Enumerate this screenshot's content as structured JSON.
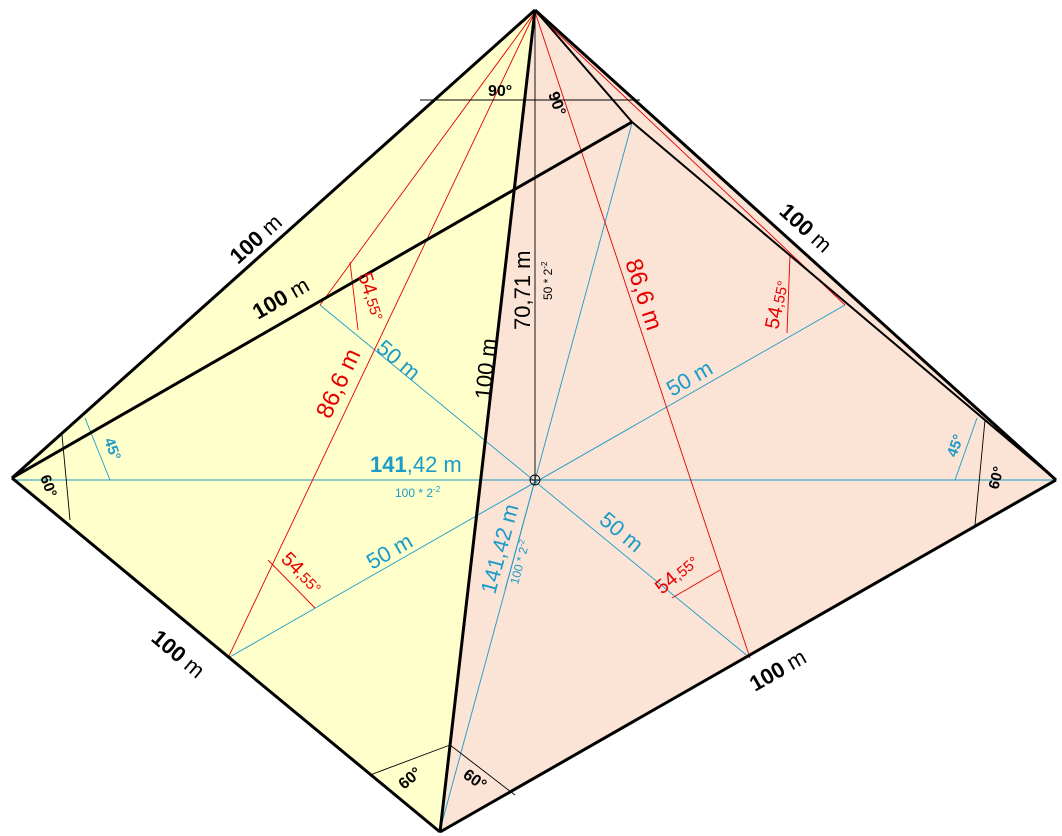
{
  "colors": {
    "left_face": "#ffffcc",
    "right_face": "#fbe3d5",
    "edge": "#000000",
    "red": "#e60000",
    "blue": "#1a9bc8"
  },
  "labels": {
    "edge_top_left": {
      "num": "100",
      "unit": " m"
    },
    "edge_inner": {
      "num": "100",
      "unit": " m"
    },
    "edge_top_right": {
      "num": "100",
      "unit": " m"
    },
    "edge_bottom_left": {
      "num": "100",
      "unit": " m"
    },
    "edge_bottom_right": {
      "num": "100",
      "unit": " m"
    },
    "edge_front": {
      "num": "100",
      "unit": " m"
    },
    "height": {
      "num": "70",
      "rest": ",71  m"
    },
    "height_formula": {
      "base": "50 * 2",
      "exp": "-2"
    },
    "apothem_left": {
      "num": "86",
      "rest": ",6 m"
    },
    "apothem_right": {
      "num": "86",
      "rest": ",6 m"
    },
    "angle_slope_left_top": {
      "num": "54",
      "rest": ",55°"
    },
    "angle_slope_right_top": {
      "num": "54",
      "rest": ",55°"
    },
    "angle_slope_left_bottom": {
      "num": "54",
      "rest": ",55°"
    },
    "angle_slope_right_bottom": {
      "num": "54",
      "rest": ",55°"
    },
    "half_base_upper_left": "50 m",
    "half_base_upper_right": "50 m",
    "half_base_lower_left": "50 m",
    "half_base_lower_right": "50 m",
    "diagonal_horizontal": {
      "num": "141",
      "rest": ",42 m"
    },
    "diagonal_horizontal_formula": {
      "base": "100 * 2",
      "exp": "-2"
    },
    "diagonal_slanted": {
      "num": "141",
      "rest": ",42 m"
    },
    "diagonal_slanted_formula": {
      "base": "100 * 2",
      "exp": "-2"
    },
    "angle_apex_left": "90°",
    "angle_apex_right": "90°",
    "angle_left_60": "60°",
    "angle_left_45": "45°",
    "angle_right_60": "60°",
    "angle_right_45": "45°",
    "angle_bottom_left_60": "60°",
    "angle_bottom_right_60": "60°"
  }
}
